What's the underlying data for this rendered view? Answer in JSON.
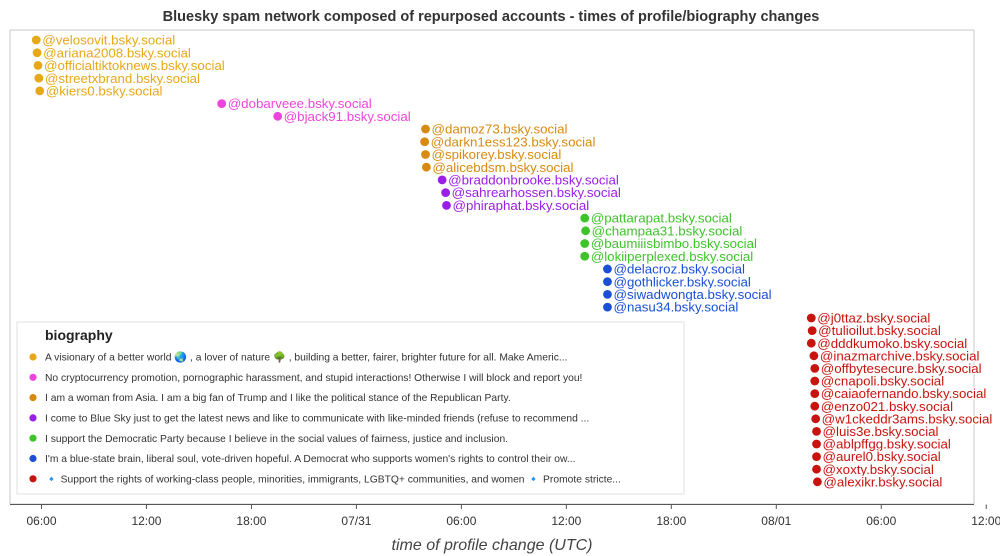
{
  "chart_data": {
    "type": "scatter",
    "title": "Bluesky spam network composed of repurposed accounts - times of profile/biography changes",
    "xlabel": "time of profile change (UTC)",
    "ylabel": "",
    "x_unit": "hours",
    "xlim": [
      4.2,
      59.3
    ],
    "x_ticks": [
      {
        "x": 6,
        "label": "06:00"
      },
      {
        "x": 12,
        "label": "12:00"
      },
      {
        "x": 18,
        "label": "18:00"
      },
      {
        "x": 24,
        "label": "07/31"
      },
      {
        "x": 30,
        "label": "06:00"
      },
      {
        "x": 36,
        "label": "12:00"
      },
      {
        "x": 42,
        "label": "18:00"
      },
      {
        "x": 48,
        "label": "08/01"
      },
      {
        "x": 54,
        "label": "06:00"
      },
      {
        "x": 60,
        "label": "12:00"
      }
    ],
    "legend_title": "biography",
    "series": [
      {
        "name": "A visionary of a better world 🌏 , a lover of nature 🌳 , building a better, fairer, brighter future for all. Make Americ...",
        "color": "#e6a817",
        "points": [
          {
            "x": 5.7,
            "label": "@velosovit.bsky.social"
          },
          {
            "x": 5.75,
            "label": "@ariana2008.bsky.social"
          },
          {
            "x": 5.8,
            "label": "@officialtiktoknews.bsky.social"
          },
          {
            "x": 5.85,
            "label": "@streetxbrand.bsky.social"
          },
          {
            "x": 5.9,
            "label": "@kiers0.bsky.social"
          }
        ]
      },
      {
        "name": "No cryptocurrency promotion, pornographic harassment, and stupid interactions! Otherwise I will block and report you!",
        "color": "#ee44dd",
        "points": [
          {
            "x": 16.3,
            "label": "@dobarveee.bsky.social"
          },
          {
            "x": 19.5,
            "label": "@bjack91.bsky.social"
          }
        ]
      },
      {
        "name": "I am a woman from Asia. I am a big fan of Trump and I like the political stance of the Republican Party.",
        "color": "#d88a10",
        "points": [
          {
            "x": 27.95,
            "label": "@damoz73.bsky.social"
          },
          {
            "x": 27.9,
            "label": "@darkn1ess123.bsky.social"
          },
          {
            "x": 27.95,
            "label": "@spikorey.bsky.social"
          },
          {
            "x": 28.0,
            "label": "@alicebdsm.bsky.social"
          }
        ]
      },
      {
        "name": "I come to Blue Sky just to get the latest news and like to communicate with like-minded friends (refuse to recommend ...",
        "color": "#9a1ee6",
        "points": [
          {
            "x": 28.9,
            "label": "@braddonbrooke.bsky.social"
          },
          {
            "x": 29.1,
            "label": "@sahrearhossen.bsky.social"
          },
          {
            "x": 29.15,
            "label": "@phiraphat.bsky.social"
          }
        ]
      },
      {
        "name": "I support the Democratic Party because I believe in the social values of fairness, justice and inclusion.",
        "color": "#3ec42a",
        "points": [
          {
            "x": 37.05,
            "label": "@pattarapat.bsky.social"
          },
          {
            "x": 37.1,
            "label": "@champaa31.bsky.social"
          },
          {
            "x": 37.05,
            "label": "@baumiiisbimbo.bsky.social"
          },
          {
            "x": 37.05,
            "label": "@lokiiperplexed.bsky.social"
          }
        ]
      },
      {
        "name": "I'm a blue-state brain, liberal soul, vote-driven hopeful. A Democrat who supports women's rights to control their ow...",
        "color": "#1a4fd6",
        "points": [
          {
            "x": 38.35,
            "label": "@delacroz.bsky.social"
          },
          {
            "x": 38.35,
            "label": "@gothlicker.bsky.social"
          },
          {
            "x": 38.35,
            "label": "@siwadwongta.bsky.social"
          },
          {
            "x": 38.35,
            "label": "@nasu34.bsky.social"
          }
        ]
      },
      {
        "name": "🔹 Support the rights of working-class people, minorities, immigrants, LGBTQ+ communities, and women 🔹 Promote stricte...",
        "color": "#c8140e",
        "points": [
          {
            "x": 50.0,
            "label": "@j0ttaz.bsky.social"
          },
          {
            "x": 50.05,
            "label": "@tulioilut.bsky.social"
          },
          {
            "x": 50.0,
            "label": "@dddkumoko.bsky.social"
          },
          {
            "x": 50.15,
            "label": "@inazmarchive.bsky.social"
          },
          {
            "x": 50.2,
            "label": "@offbytesecure.bsky.social"
          },
          {
            "x": 50.2,
            "label": "@cnapoli.bsky.social"
          },
          {
            "x": 50.2,
            "label": "@caiaofernando.bsky.social"
          },
          {
            "x": 50.2,
            "label": "@enzo021.bsky.social"
          },
          {
            "x": 50.25,
            "label": "@w1ckeddr3ams.bsky.social"
          },
          {
            "x": 50.3,
            "label": "@luis3e.bsky.social"
          },
          {
            "x": 50.3,
            "label": "@ablpffgg.bsky.social"
          },
          {
            "x": 50.3,
            "label": "@aurel0.bsky.social"
          },
          {
            "x": 50.3,
            "label": "@xoxty.bsky.social"
          },
          {
            "x": 50.35,
            "label": "@alexikr.bsky.social"
          }
        ]
      }
    ]
  }
}
